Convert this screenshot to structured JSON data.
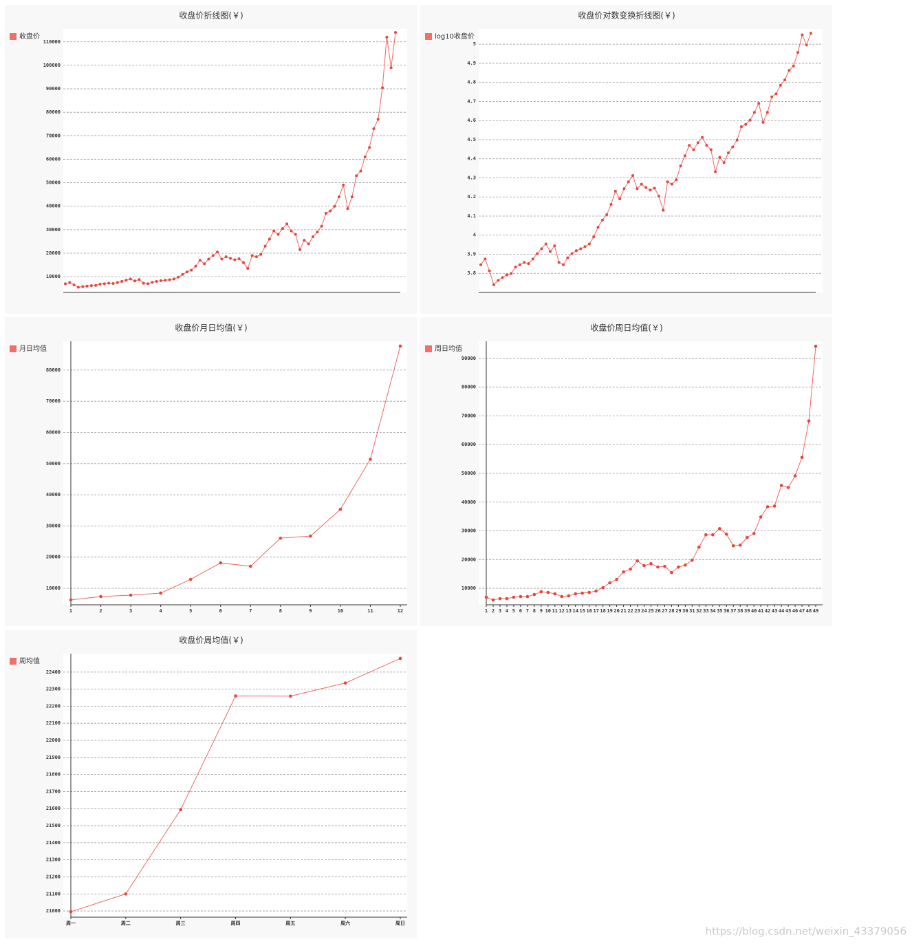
{
  "chart_data": [
    {
      "type": "line",
      "title": "收盘价折线图(￥)",
      "grid": true,
      "y_axis_line": false,
      "series": [
        {
          "name": "收盘价",
          "color": "#e8443a",
          "values": [
            7000,
            7500,
            6500,
            5500,
            5800,
            6000,
            6200,
            6300,
            6800,
            7000,
            7200,
            7100,
            7500,
            8000,
            8500,
            9000,
            8200,
            8800,
            7200,
            7000,
            7600,
            8000,
            8300,
            8500,
            8700,
            9000,
            9800,
            11000,
            12000,
            12800,
            14500,
            17000,
            15500,
            17500,
            19000,
            20500,
            17500,
            18500,
            17800,
            17200,
            17600,
            16000,
            13500,
            19000,
            18500,
            19500,
            23000,
            26000,
            29500,
            28000,
            30500,
            32500,
            29500,
            28000,
            21500,
            25500,
            24000,
            27000,
            29000,
            31500,
            37000,
            38000,
            40000,
            44000,
            49000,
            39000,
            44000,
            53000,
            55000,
            61000,
            65000,
            73000,
            77000,
            90500,
            112000,
            99000,
            114000
          ]
        }
      ],
      "ylim": [
        3300,
        115500
      ],
      "yticks": [
        10000,
        20000,
        30000,
        40000,
        50000,
        60000,
        70000,
        80000,
        90000,
        100000,
        110000
      ]
    },
    {
      "type": "line",
      "title": "收盘价对数变换折线图(￥)",
      "grid": true,
      "y_axis_line": false,
      "series": [
        {
          "name": "log10收盘价",
          "color": "#e8443a",
          "values": [
            3.845,
            3.875,
            3.813,
            3.74,
            3.763,
            3.778,
            3.792,
            3.799,
            3.833,
            3.845,
            3.857,
            3.851,
            3.875,
            3.903,
            3.929,
            3.954,
            3.914,
            3.944,
            3.857,
            3.845,
            3.881,
            3.903,
            3.919,
            3.929,
            3.94,
            3.954,
            3.991,
            4.041,
            4.079,
            4.107,
            4.161,
            4.23,
            4.19,
            4.243,
            4.279,
            4.312,
            4.243,
            4.267,
            4.25,
            4.236,
            4.246,
            4.204,
            4.13,
            4.279,
            4.267,
            4.29,
            4.362,
            4.415,
            4.47,
            4.447,
            4.484,
            4.512,
            4.47,
            4.447,
            4.332,
            4.407,
            4.38,
            4.431,
            4.462,
            4.498,
            4.568,
            4.58,
            4.602,
            4.643,
            4.69,
            4.591,
            4.643,
            4.724,
            4.74,
            4.785,
            4.813,
            4.863,
            4.886,
            4.957,
            5.049,
            4.996,
            5.057
          ]
        }
      ],
      "ylim": [
        3.7,
        5.08
      ],
      "yticks": [
        3.8,
        3.9,
        4,
        4.1,
        4.2,
        4.3,
        4.4,
        4.5,
        4.6,
        4.7,
        4.8,
        4.9,
        5
      ]
    },
    {
      "type": "line",
      "title": "收盘价月日均值(￥)",
      "grid": true,
      "y_axis_line": true,
      "categories": [
        "1",
        "2",
        "3",
        "4",
        "5",
        "6",
        "7",
        "8",
        "9",
        "10",
        "11",
        "12"
      ],
      "series": [
        {
          "name": "月日均值",
          "color": "#e8443a",
          "values": [
            6260,
            7360,
            7800,
            8460,
            12860,
            18150,
            17050,
            26080,
            26740,
            35330,
            51400,
            87700
          ]
        }
      ],
      "ylim": [
        4700,
        89250
      ],
      "yticks": [
        10000,
        20000,
        30000,
        40000,
        50000,
        60000,
        70000,
        80000
      ]
    },
    {
      "type": "line",
      "title": "收盘价周日均值(￥)",
      "grid": true,
      "y_axis_line": true,
      "categories": [
        "1",
        "2",
        "3",
        "4",
        "5",
        "6",
        "7",
        "8",
        "9",
        "10",
        "11",
        "12",
        "13",
        "14",
        "15",
        "16",
        "17",
        "18",
        "19",
        "20",
        "21",
        "22",
        "23",
        "24",
        "25",
        "26",
        "27",
        "28",
        "29",
        "30",
        "31",
        "32",
        "33",
        "34",
        "35",
        "36",
        "37",
        "38",
        "39",
        "40",
        "41",
        "42",
        "43",
        "44",
        "45",
        "46",
        "47",
        "48",
        "49"
      ],
      "series": [
        {
          "name": "周日均值",
          "color": "#e8443a",
          "values": [
            6900,
            5940,
            6420,
            6420,
            6900,
            7140,
            7140,
            7850,
            8810,
            8570,
            8090,
            7140,
            7370,
            8090,
            8330,
            8570,
            9050,
            10240,
            11910,
            13100,
            15730,
            16680,
            19550,
            17880,
            18590,
            17400,
            17640,
            15490,
            17400,
            18110,
            19790,
            24320,
            28620,
            28620,
            30770,
            28850,
            24800,
            25040,
            27660,
            29090,
            34820,
            38400,
            38640,
            45800,
            45080,
            49140,
            55580,
            68230,
            94240
          ]
        }
      ],
      "ylim": [
        4270,
        95970
      ],
      "yticks": [
        10000,
        20000,
        30000,
        40000,
        50000,
        60000,
        70000,
        80000,
        90000
      ]
    },
    {
      "type": "line",
      "title": "收盘价周均值(￥)",
      "grid": true,
      "y_axis_line": true,
      "categories": [
        "周一",
        "周二",
        "周三",
        "周四",
        "周五",
        "周六",
        "周日"
      ],
      "series": [
        {
          "name": "周均值",
          "color": "#e8443a",
          "values": [
            20996,
            21100,
            21594,
            22260,
            22259,
            22336,
            22480
          ]
        }
      ],
      "ylim": [
        20964,
        22508
      ],
      "yticks": [
        21000,
        21100,
        21200,
        21300,
        21400,
        21500,
        21600,
        21700,
        21800,
        21900,
        22000,
        22100,
        22200,
        22300,
        22400
      ]
    }
  ],
  "watermark": "https://blog.csdn.net/weixin_43379056"
}
